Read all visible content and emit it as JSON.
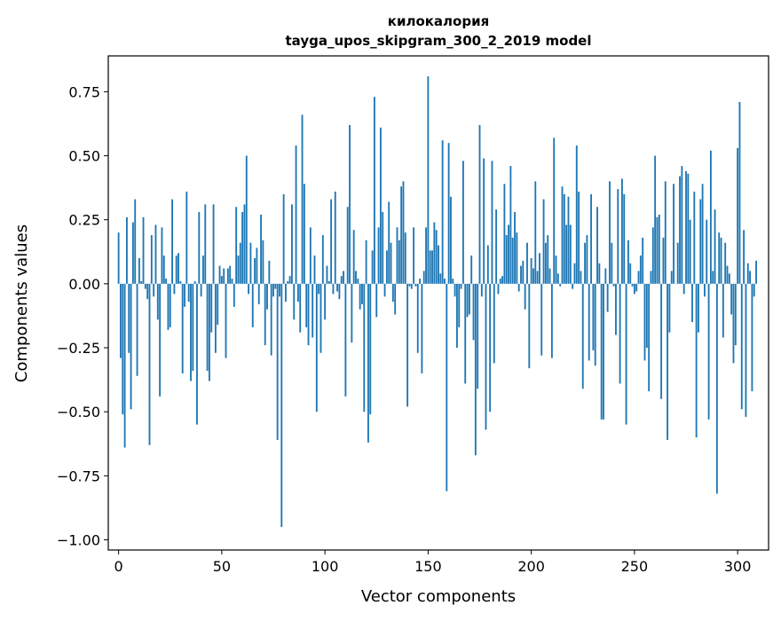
{
  "chart_data": {
    "type": "bar",
    "title": "килокалория",
    "subtitle": "tayga_upos_skipgram_300_2_2019 model",
    "xlabel": "Vector components",
    "ylabel": "Components values",
    "xlim": [
      -5,
      315
    ],
    "ylim": [
      -1.04,
      0.89
    ],
    "xticks": [
      0,
      50,
      100,
      150,
      200,
      250,
      300
    ],
    "xtick_labels": [
      "0",
      "50",
      "100",
      "150",
      "200",
      "250",
      "300"
    ],
    "yticks": [
      -1.0,
      -0.75,
      -0.5,
      -0.25,
      0.0,
      0.25,
      0.5,
      0.75
    ],
    "ytick_labels": [
      "−1.00",
      "−0.75",
      "−0.50",
      "−0.25",
      "0.00",
      "0.25",
      "0.50",
      "0.75"
    ],
    "grid": false,
    "color": "#1f77b4",
    "values": [
      0.2,
      -0.29,
      -0.51,
      -0.64,
      0.26,
      -0.27,
      -0.49,
      0.24,
      0.33,
      -0.36,
      0.1,
      0.01,
      0.26,
      -0.02,
      -0.06,
      -0.63,
      0.19,
      -0.05,
      0.23,
      -0.14,
      -0.44,
      0.22,
      0.11,
      0.02,
      -0.18,
      -0.17,
      0.33,
      -0.04,
      0.11,
      0.12,
      0.01,
      -0.35,
      -0.09,
      0.36,
      -0.07,
      -0.38,
      -0.34,
      0.01,
      -0.55,
      0.28,
      -0.05,
      0.11,
      0.31,
      -0.34,
      -0.38,
      -0.19,
      0.31,
      -0.27,
      -0.16,
      0.07,
      0.03,
      0.06,
      -0.29,
      0.06,
      0.07,
      0.02,
      -0.09,
      0.3,
      0.11,
      0.16,
      0.28,
      0.31,
      0.5,
      -0.04,
      0.16,
      -0.17,
      0.1,
      0.14,
      -0.08,
      0.27,
      0.17,
      -0.24,
      -0.1,
      0.09,
      -0.28,
      -0.05,
      -0.02,
      -0.61,
      -0.05,
      -0.95,
      0.35,
      -0.07,
      0.01,
      0.03,
      0.31,
      -0.14,
      0.54,
      -0.07,
      -0.19,
      0.66,
      0.39,
      -0.17,
      -0.24,
      0.22,
      -0.21,
      0.11,
      -0.5,
      -0.04,
      -0.27,
      0.19,
      -0.14,
      0.07,
      0.01,
      0.33,
      -0.04,
      0.36,
      -0.03,
      -0.06,
      0.03,
      0.05,
      -0.44,
      0.3,
      0.62,
      -0.23,
      0.21,
      0.05,
      0.02,
      -0.1,
      -0.08,
      -0.5,
      0.17,
      -0.62,
      -0.51,
      0.13,
      0.73,
      -0.13,
      0.22,
      0.61,
      0.28,
      -0.05,
      0.13,
      0.32,
      0.16,
      -0.07,
      -0.12,
      0.22,
      0.17,
      0.38,
      0.4,
      0.2,
      -0.48,
      -0.01,
      -0.02,
      0.22,
      -0.01,
      -0.27,
      0.02,
      -0.35,
      0.05,
      0.22,
      0.81,
      0.13,
      0.13,
      0.24,
      0.21,
      0.15,
      0.04,
      0.56,
      0.02,
      -0.81,
      0.55,
      0.34,
      0.02,
      -0.05,
      -0.25,
      -0.17,
      -0.02,
      0.48,
      -0.39,
      -0.13,
      -0.12,
      0.11,
      -0.22,
      -0.67,
      -0.41,
      0.62,
      -0.05,
      0.49,
      -0.57,
      0.15,
      -0.5,
      0.48,
      -0.31,
      0.29,
      -0.04,
      0.02,
      0.03,
      0.39,
      0.19,
      0.23,
      0.46,
      0.18,
      0.28,
      0.2,
      -0.03,
      0.07,
      0.09,
      -0.1,
      0.16,
      -0.33,
      0.1,
      0.06,
      0.4,
      0.05,
      0.12,
      -0.28,
      0.33,
      0.16,
      0.19,
      0.06,
      -0.29,
      0.57,
      0.11,
      0.04,
      -0.01,
      0.38,
      0.35,
      0.23,
      0.34,
      0.23,
      -0.02,
      0.08,
      0.54,
      0.36,
      0.05,
      -0.41,
      0.16,
      0.19,
      -0.3,
      0.35,
      -0.26,
      -0.32,
      0.3,
      0.08,
      -0.53,
      -0.53,
      0.06,
      -0.11,
      0.4,
      0.16,
      -0.01,
      -0.2,
      0.37,
      -0.39,
      0.41,
      0.35,
      -0.55,
      0.17,
      0.08,
      -0.01,
      -0.04,
      -0.03,
      0.05,
      0.11,
      0.18,
      -0.3,
      -0.25,
      -0.42,
      0.05,
      0.22,
      0.5,
      0.26,
      0.27,
      -0.45,
      0.18,
      0.4,
      -0.61,
      -0.19,
      0.05,
      0.39,
      0.0,
      0.16,
      0.42,
      0.46,
      -0.04,
      0.44,
      0.43,
      0.25,
      -0.15,
      0.36,
      -0.6,
      -0.19,
      0.33,
      0.39,
      -0.05,
      0.25,
      -0.53,
      0.52,
      0.05,
      0.29,
      -0.82,
      0.2,
      0.18,
      -0.21,
      0.16,
      0.07,
      0.04,
      -0.12,
      -0.31,
      -0.24,
      0.53,
      0.71,
      -0.49,
      0.21,
      -0.52,
      0.08,
      0.05,
      -0.42,
      -0.05,
      0.09
    ]
  }
}
